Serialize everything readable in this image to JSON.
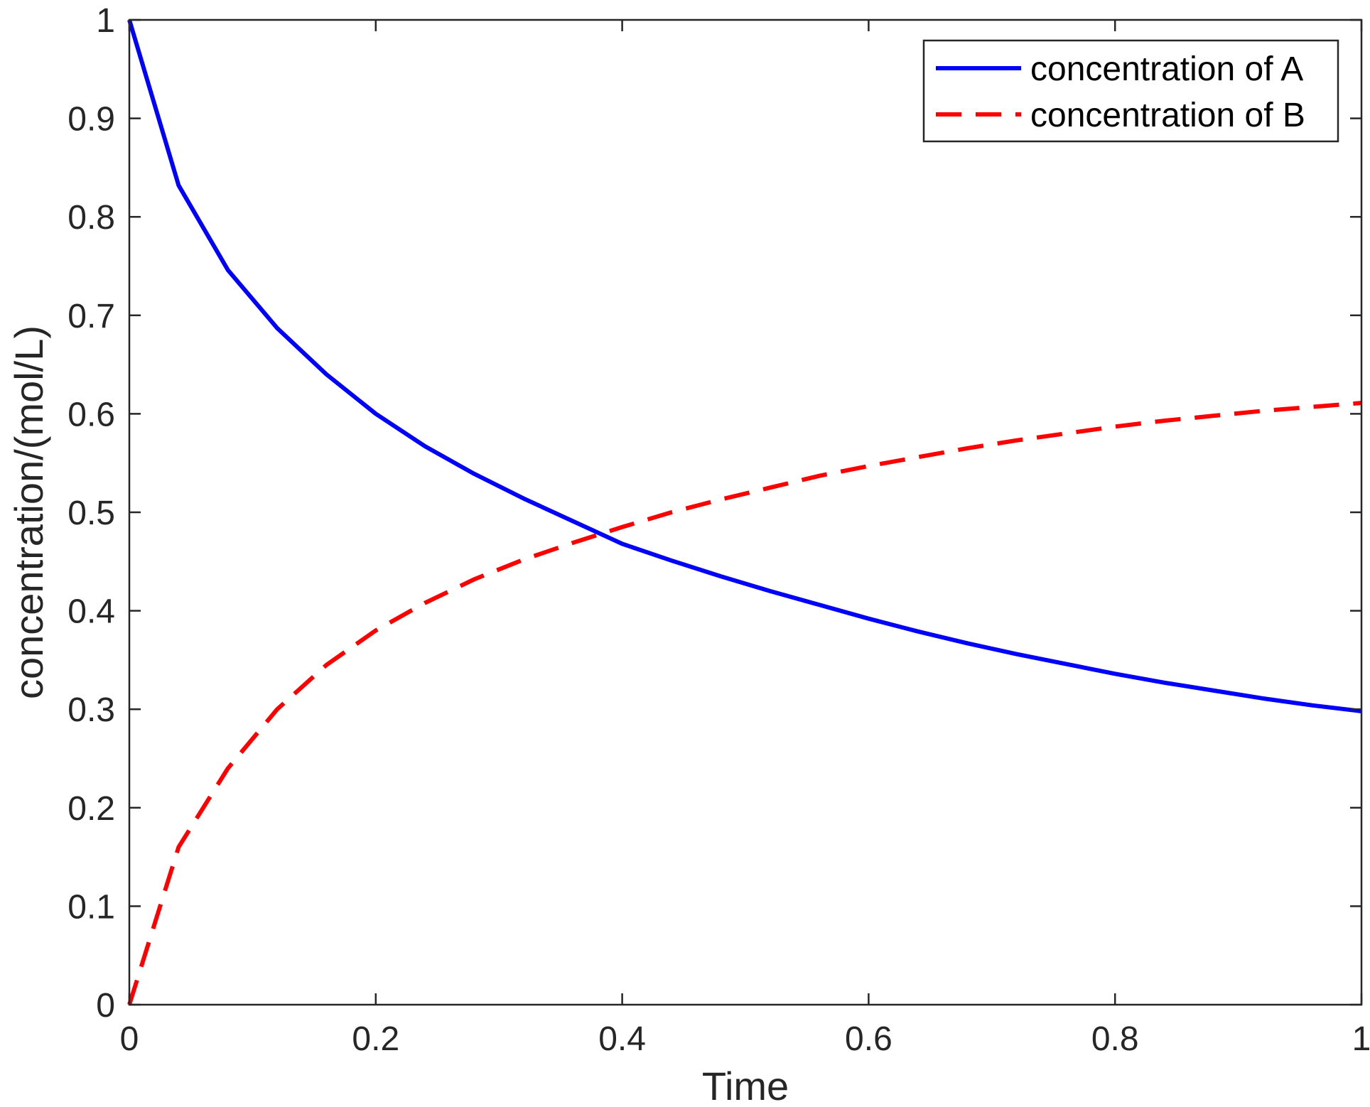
{
  "chart_data": {
    "type": "line",
    "title": "",
    "xlabel": "Time",
    "ylabel": "concentration/(mol/L)",
    "xlim": [
      0,
      1
    ],
    "ylim": [
      0,
      1
    ],
    "xticks": [
      0,
      0.2,
      0.4,
      0.6,
      0.8,
      1
    ],
    "xtick_labels": [
      "0",
      "0.2",
      "0.4",
      "0.6",
      "0.8",
      "1"
    ],
    "yticks": [
      0,
      0.1,
      0.2,
      0.3,
      0.4,
      0.5,
      0.6,
      0.7,
      0.8,
      0.9,
      1
    ],
    "ytick_labels": [
      "0",
      "0.1",
      "0.2",
      "0.3",
      "0.4",
      "0.5",
      "0.6",
      "0.7",
      "0.8",
      "0.9",
      "1"
    ],
    "grid": false,
    "legend_position": "top-right",
    "x": [
      0,
      0.04,
      0.08,
      0.12,
      0.16,
      0.2,
      0.24,
      0.28,
      0.32,
      0.36,
      0.4,
      0.44,
      0.48,
      0.52,
      0.56,
      0.6,
      0.64,
      0.68,
      0.72,
      0.76,
      0.8,
      0.84,
      0.88,
      0.92,
      0.96,
      1.0
    ],
    "series": [
      {
        "name": "concentration of A",
        "color": "#0000ff",
        "style": "solid",
        "values": [
          1.0,
          0.832,
          0.746,
          0.687,
          0.64,
          0.6,
          0.567,
          0.539,
          0.514,
          0.491,
          0.468,
          0.451,
          0.435,
          0.42,
          0.406,
          0.392,
          0.379,
          0.367,
          0.356,
          0.346,
          0.336,
          0.327,
          0.319,
          0.311,
          0.304,
          0.298
        ]
      },
      {
        "name": "concentration of B",
        "color": "#ff0000",
        "style": "dashed",
        "values": [
          0.0,
          0.16,
          0.24,
          0.3,
          0.345,
          0.38,
          0.408,
          0.432,
          0.452,
          0.469,
          0.485,
          0.5,
          0.513,
          0.525,
          0.537,
          0.547,
          0.556,
          0.565,
          0.573,
          0.58,
          0.587,
          0.593,
          0.598,
          0.603,
          0.607,
          0.611
        ]
      }
    ]
  }
}
